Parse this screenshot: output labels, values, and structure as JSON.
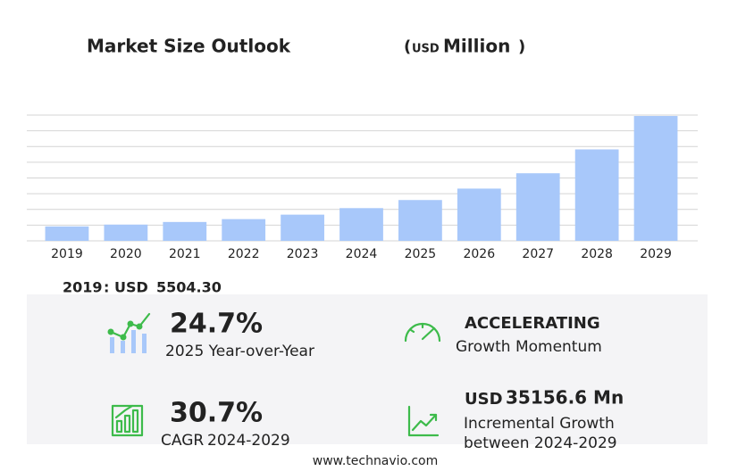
{
  "chart_data": {
    "type": "bar",
    "title": "Market Size Outlook",
    "unit_prefix": "(",
    "unit_currency": "USD",
    "unit": "Million",
    "unit_suffix": ")",
    "categories": [
      "2019",
      "2020",
      "2021",
      "2022",
      "2023",
      "2024",
      "2025",
      "2026",
      "2027",
      "2028",
      "2029"
    ],
    "values": [
      5504.3,
      6200,
      7200,
      8300,
      10000,
      12494,
      15580,
      19940,
      25800,
      34900,
      47651
    ],
    "color": "#a8c8fa",
    "ylim": [
      0,
      48000
    ],
    "grid": true
  },
  "base": {
    "year": "2019",
    "separator": ":",
    "currency": "USD",
    "value": "5504.30"
  },
  "kpis": {
    "yoy": {
      "value": "24.7%",
      "label": "2025 Year-over-Year"
    },
    "momentum": {
      "value": "ACCELERATING",
      "label": "Growth Momentum"
    },
    "cagr": {
      "value": "30.7%",
      "label_prefix": "CAGR",
      "label": "2024-2029"
    },
    "incremental": {
      "currency": "USD",
      "value": "35156.6 Mn",
      "label": "Incremental Growth",
      "label2": "between 2024-2029"
    }
  },
  "footer": "www.technavio.com"
}
